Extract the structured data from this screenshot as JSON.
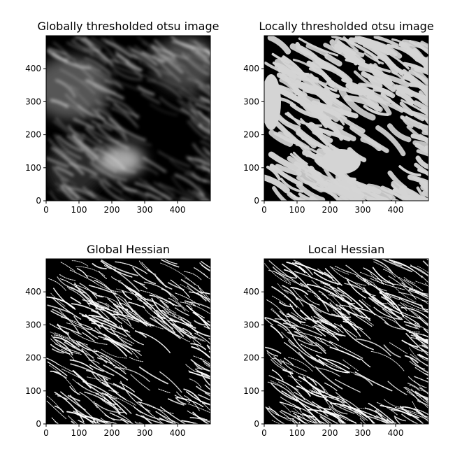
{
  "chart_data": [
    {
      "type": "heatmap",
      "title": "Globally thresholded otsu image",
      "image": "grayscale",
      "xlim": [
        0,
        500
      ],
      "ylim": [
        0,
        500
      ],
      "xticks": [
        0,
        100,
        200,
        300,
        400
      ],
      "yticks": [
        0,
        100,
        200,
        300,
        400
      ],
      "cmap": "gray"
    },
    {
      "type": "heatmap",
      "title": "Locally thresholded otsu image",
      "image": "binary-mask",
      "xlim": [
        0,
        500
      ],
      "ylim": [
        0,
        500
      ],
      "xticks": [
        0,
        100,
        200,
        300,
        400
      ],
      "yticks": [
        0,
        100,
        200,
        300,
        400
      ],
      "cmap": "gray"
    },
    {
      "type": "heatmap",
      "title": "Global Hessian",
      "image": "ridge-filter",
      "xlim": [
        0,
        500
      ],
      "ylim": [
        0,
        500
      ],
      "xticks": [
        0,
        100,
        200,
        300,
        400
      ],
      "yticks": [
        0,
        100,
        200,
        300,
        400
      ],
      "cmap": "gray"
    },
    {
      "type": "heatmap",
      "title": "Local Hessian",
      "image": "ridge-filter",
      "xlim": [
        0,
        500
      ],
      "ylim": [
        0,
        500
      ],
      "xticks": [
        0,
        100,
        200,
        300,
        400
      ],
      "yticks": [
        0,
        100,
        200,
        300,
        400
      ],
      "cmap": "gray"
    }
  ]
}
